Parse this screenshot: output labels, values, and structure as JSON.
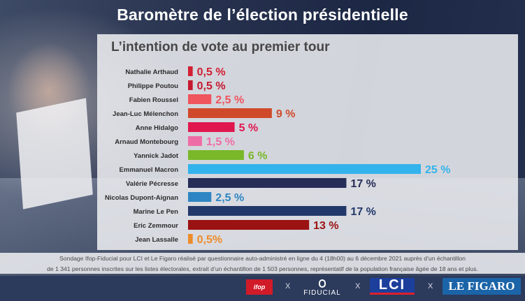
{
  "header": {
    "title": "Baromètre de l’élection présidentielle",
    "subtitle": "L’intention de vote au premier tour"
  },
  "chart_data": {
    "type": "bar",
    "orientation": "horizontal",
    "title": "L’intention de vote au premier tour",
    "xlabel": "",
    "ylabel": "",
    "xlim": [
      0,
      25
    ],
    "grid": false,
    "categories": [
      "Nathalie Arthaud",
      "Philippe Poutou",
      "Fabien Roussel",
      "Jean-Luc Mélenchon",
      "Anne Hidalgo",
      "Arnaud Montebourg",
      "Yannick Jadot",
      "Emmanuel Macron",
      "Valérie Pécresse",
      "Nicolas Dupont-Aignan",
      "Marine Le Pen",
      "Eric Zemmour",
      "Jean Lassalle"
    ],
    "values": [
      0.5,
      0.5,
      2.5,
      9,
      5,
      1.5,
      6,
      25,
      17,
      2.5,
      17,
      13,
      0.5
    ],
    "value_labels": [
      "0,5 %",
      "0,5 %",
      "2,5 %",
      "9 %",
      "5 %",
      "1,5 %",
      "6 %",
      "25 %",
      "17 %",
      "2,5 %",
      "17 %",
      "13 %",
      "0,5%"
    ],
    "colors": [
      "#d21f33",
      "#c5182f",
      "#f0545d",
      "#cf4a2b",
      "#e0174f",
      "#ef6da6",
      "#79b829",
      "#33b3ec",
      "#262d57",
      "#2d86c3",
      "#23386a",
      "#9b1213",
      "#ee8c2a"
    ]
  },
  "source": {
    "line1": "Sondage Ifop-Fiducial pour LCI et Le Figaro réalisé par questionnaire auto-administré en ligne du 4 (18h00) au 6 décembre 2021 auprès d’un échantillon",
    "line2": "de 1 341 personnes inscrites sur les listes électorales, extrait d’un échantillon de 1 503 personnes, représentatif de la population française âgée de 18 ans et plus."
  },
  "footer": {
    "logos": [
      "ifop",
      "FIDUCIAL",
      "LCI",
      "LE FIGARO"
    ],
    "separator": "X"
  }
}
